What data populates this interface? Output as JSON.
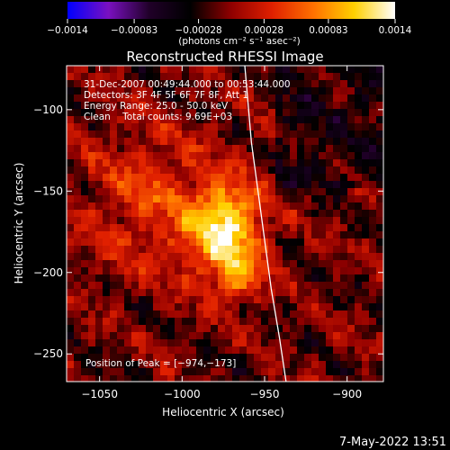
{
  "chart_data": {
    "type": "heatmap",
    "title": "Reconstructed RHESSI Image",
    "xlabel": "Heliocentric X (arcsec)",
    "ylabel": "Heliocentric Y (arcsec)",
    "xlim": [
      -1070,
      -878
    ],
    "ylim": [
      -267,
      -73
    ],
    "x_ticks": [
      -1050,
      -1000,
      -950,
      -900
    ],
    "y_ticks": [
      -250,
      -200,
      -150,
      -100
    ],
    "x_tick_labels": [
      "−1050",
      "−1000",
      "−950",
      "−900"
    ],
    "y_tick_labels": [
      "−250",
      "−200",
      "−150",
      "−100"
    ],
    "colorbar": {
      "min": -0.0014,
      "max": 0.0014,
      "ticks": [
        -0.0014,
        -0.00083,
        -0.00028,
        0.00028,
        0.00083,
        0.0014
      ],
      "tick_labels": [
        "−0.0014",
        "−0.00083",
        "−0.00028",
        "0.00028",
        "0.00083",
        "0.0014"
      ],
      "unit_label": "(photons cm⁻² s⁻¹ asec⁻²)",
      "colors": [
        "#0000ff",
        "#7a10c0",
        "#200028",
        "#000000",
        "#900000",
        "#e02000",
        "#ff7000",
        "#ffd000",
        "#ffffff"
      ]
    },
    "annotations": {
      "time": "31-Dec-2007 00:49:44.000 to 00:53:44.000",
      "detectors": "Detectors: 3F 4F 5F 6F 7F 8F, Att 1",
      "energy": "Energy Range: 25.0 - 50.0 keV",
      "clean": "Clean    Total counts: 9.69E+03",
      "peak": "Position of Peak = [−974,−173]"
    },
    "peak": [
      -974,
      -173
    ],
    "limb": [
      [
        -962,
        -73
      ],
      [
        -958,
        -120
      ],
      [
        -954,
        -150
      ],
      [
        -950,
        -180
      ],
      [
        -946,
        -210
      ],
      [
        -941,
        -240
      ],
      [
        -937,
        -267
      ]
    ]
  },
  "footer": {
    "datestamp": "7-May-2022 13:51"
  }
}
